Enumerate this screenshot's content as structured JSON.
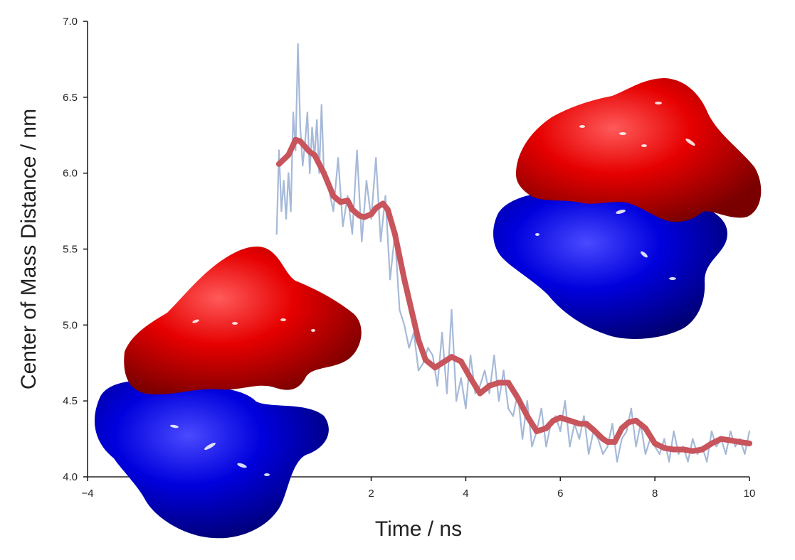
{
  "chart_data": {
    "type": "line",
    "xlabel": "Time / ns",
    "ylabel": "Center of Mass Distance / nm",
    "xlim": [
      -4,
      10
    ],
    "ylim": [
      4.0,
      7.0
    ],
    "x_ticks": [
      -4,
      2,
      4,
      6,
      8,
      10
    ],
    "x_tick_labels": [
      "−4",
      "2",
      "4",
      "6",
      "8",
      "10"
    ],
    "y_ticks": [
      4.0,
      4.5,
      5.0,
      5.5,
      6.0,
      6.5,
      7.0
    ],
    "y_tick_labels": [
      "4.0",
      "4.5",
      "5.0",
      "5.5",
      "6.0",
      "6.5",
      "7.0"
    ],
    "grid": false,
    "legend": "none",
    "series": [
      {
        "role": "raw",
        "color": "#a6b9d8",
        "x": [
          0.0,
          0.05,
          0.1,
          0.15,
          0.2,
          0.25,
          0.3,
          0.35,
          0.4,
          0.45,
          0.5,
          0.55,
          0.6,
          0.65,
          0.7,
          0.75,
          0.8,
          0.85,
          0.9,
          0.95,
          1.0,
          1.1,
          1.2,
          1.3,
          1.4,
          1.5,
          1.6,
          1.7,
          1.8,
          1.9,
          2.0,
          2.1,
          2.2,
          2.3,
          2.4,
          2.5,
          2.6,
          2.7,
          2.8,
          2.9,
          3.0,
          3.1,
          3.2,
          3.3,
          3.4,
          3.5,
          3.6,
          3.7,
          3.8,
          3.9,
          4.0,
          4.1,
          4.2,
          4.3,
          4.4,
          4.5,
          4.6,
          4.7,
          4.8,
          4.9,
          5.0,
          5.1,
          5.2,
          5.3,
          5.4,
          5.5,
          5.6,
          5.7,
          5.8,
          5.9,
          6.0,
          6.1,
          6.2,
          6.3,
          6.4,
          6.5,
          6.6,
          6.7,
          6.8,
          6.9,
          7.0,
          7.1,
          7.2,
          7.3,
          7.4,
          7.5,
          7.6,
          7.7,
          7.8,
          7.9,
          8.0,
          8.1,
          8.2,
          8.3,
          8.4,
          8.5,
          8.6,
          8.7,
          8.8,
          8.9,
          9.0,
          9.1,
          9.2,
          9.3,
          9.4,
          9.5,
          9.6,
          9.7,
          9.8,
          9.9,
          10.0
        ],
        "y": [
          5.6,
          6.15,
          5.75,
          5.95,
          5.7,
          6.0,
          5.75,
          6.4,
          6.15,
          6.85,
          6.3,
          6.05,
          6.2,
          6.4,
          6.0,
          6.3,
          6.1,
          6.35,
          6.0,
          6.45,
          6.0,
          5.9,
          5.75,
          6.1,
          5.65,
          5.85,
          5.6,
          6.15,
          5.55,
          5.95,
          5.7,
          6.1,
          5.55,
          5.85,
          5.3,
          5.6,
          5.1,
          5.0,
          4.85,
          4.95,
          4.7,
          4.75,
          4.85,
          4.8,
          4.6,
          4.95,
          4.55,
          5.1,
          4.5,
          4.65,
          4.45,
          4.8,
          4.55,
          4.6,
          4.7,
          4.55,
          4.8,
          4.5,
          4.7,
          4.45,
          4.4,
          4.55,
          4.25,
          4.5,
          4.2,
          4.3,
          4.45,
          4.2,
          4.35,
          4.4,
          4.3,
          4.5,
          4.2,
          4.35,
          4.25,
          4.4,
          4.15,
          4.3,
          4.25,
          4.15,
          4.2,
          4.35,
          4.1,
          4.25,
          4.3,
          4.45,
          4.2,
          4.35,
          4.15,
          4.25,
          4.2,
          4.15,
          4.25,
          4.1,
          4.3,
          4.15,
          4.2,
          4.1,
          4.25,
          4.15,
          4.2,
          4.1,
          4.3,
          4.2,
          4.25,
          4.15,
          4.3,
          4.2,
          4.25,
          4.15,
          4.3
        ]
      },
      {
        "role": "smoothed",
        "color": "#c8545c",
        "x": [
          0.05,
          0.25,
          0.4,
          0.5,
          0.7,
          0.8,
          1.0,
          1.2,
          1.35,
          1.5,
          1.6,
          1.75,
          1.85,
          2.0,
          2.1,
          2.25,
          2.35,
          2.5,
          2.7,
          3.0,
          3.15,
          3.35,
          3.55,
          3.7,
          3.9,
          4.1,
          4.3,
          4.5,
          4.7,
          4.9,
          5.1,
          5.3,
          5.5,
          5.7,
          5.85,
          6.0,
          6.2,
          6.4,
          6.55,
          6.7,
          6.9,
          7.0,
          7.15,
          7.3,
          7.45,
          7.6,
          7.8,
          8.0,
          8.2,
          8.4,
          8.6,
          8.8,
          9.0,
          9.2,
          9.4,
          9.6,
          9.8,
          10.0
        ],
        "y": [
          6.06,
          6.12,
          6.22,
          6.21,
          6.14,
          6.12,
          6.0,
          5.85,
          5.81,
          5.82,
          5.76,
          5.72,
          5.71,
          5.73,
          5.77,
          5.8,
          5.76,
          5.6,
          5.3,
          4.9,
          4.77,
          4.72,
          4.76,
          4.79,
          4.76,
          4.65,
          4.55,
          4.6,
          4.62,
          4.62,
          4.52,
          4.4,
          4.3,
          4.32,
          4.37,
          4.39,
          4.37,
          4.35,
          4.35,
          4.31,
          4.25,
          4.23,
          4.23,
          4.32,
          4.36,
          4.37,
          4.32,
          4.22,
          4.19,
          4.18,
          4.18,
          4.17,
          4.18,
          4.22,
          4.25,
          4.24,
          4.23,
          4.22
        ]
      }
    ]
  }
}
